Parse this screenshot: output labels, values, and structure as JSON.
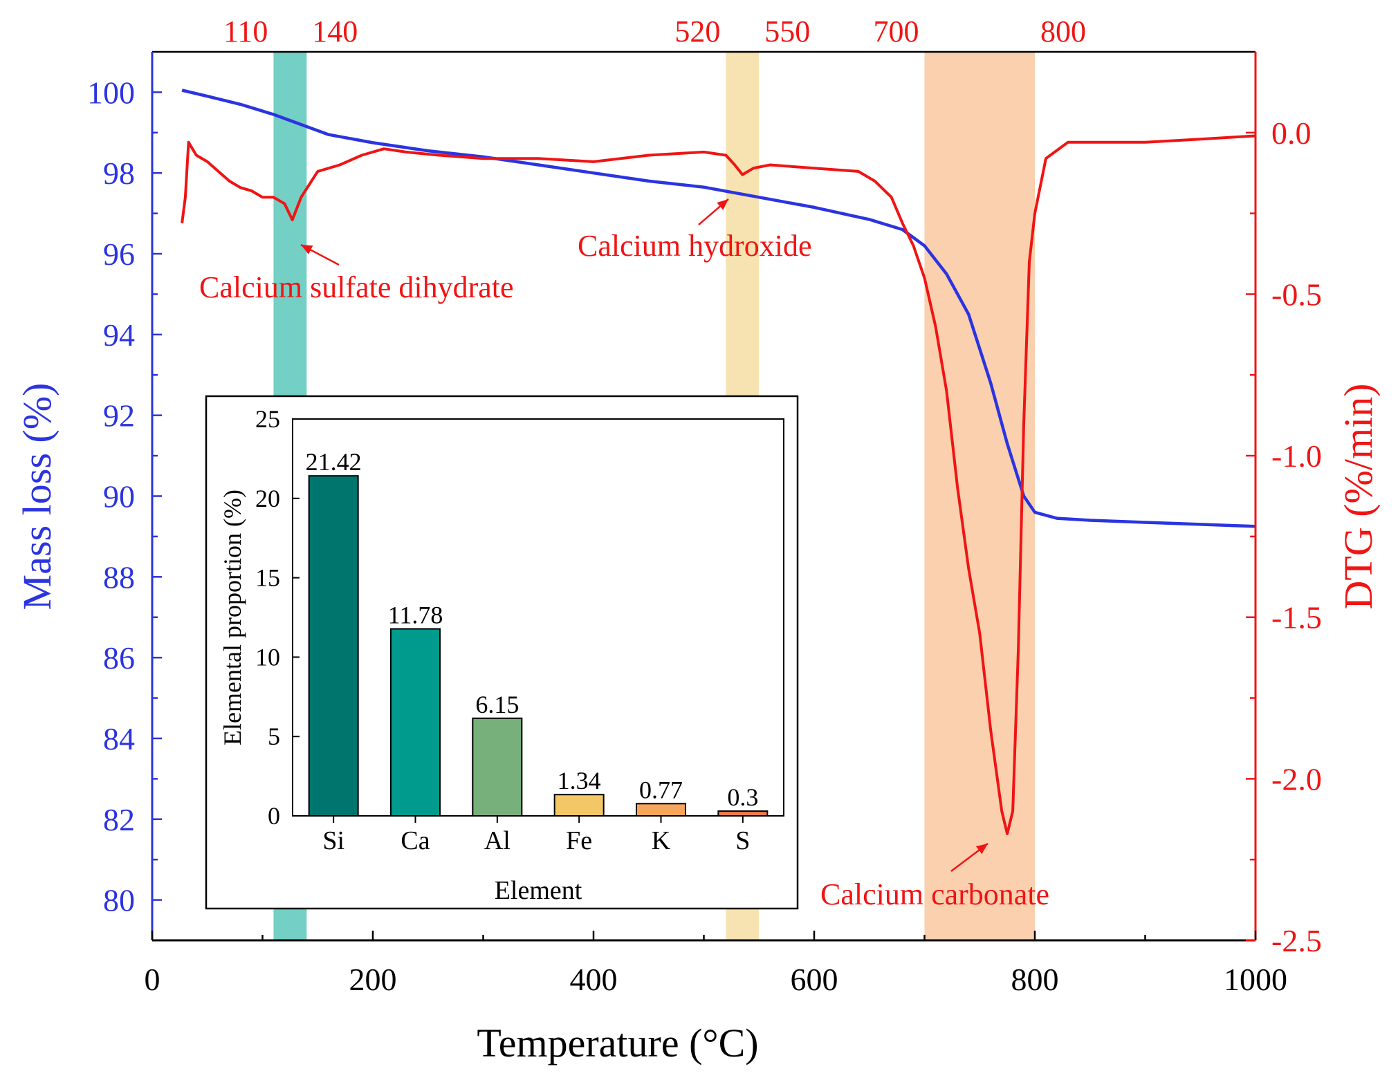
{
  "colors": {
    "mass": "#2b34e0",
    "dtg": "#f01414",
    "band1": "#74cfc4",
    "band2": "#f7e2b1",
    "band3": "#fbd0ae",
    "bar_si": "#00756e",
    "bar_ca": "#009b8d",
    "bar_al": "#77b07a",
    "bar_fe": "#f4c766",
    "bar_k": "#f5a65b",
    "bar_s": "#f07a4f"
  },
  "chart_data": [
    {
      "type": "line",
      "xlabel": "Temperature (°C)",
      "ylabel_left": "Mass loss (%)",
      "ylabel_right": "DTG (%/min)",
      "xlim": [
        0,
        1000
      ],
      "ylim_left": [
        79,
        101
      ],
      "ylim_right": [
        -2.5,
        0.25
      ],
      "x_ticks": [
        "0",
        "200",
        "400",
        "600",
        "800",
        "1000"
      ],
      "left_ticks": [
        "80",
        "82",
        "84",
        "86",
        "88",
        "90",
        "92",
        "94",
        "96",
        "98",
        "100"
      ],
      "right_ticks": [
        "0.0",
        "-0.5",
        "-1.0",
        "-1.5",
        "-2.0",
        "-2.5"
      ],
      "bands": [
        {
          "from": 110,
          "to": 140,
          "from_label": "110",
          "to_label": "140"
        },
        {
          "from": 520,
          "to": 550,
          "from_label": "520",
          "to_label": "550"
        },
        {
          "from": 700,
          "to": 800,
          "from_label": "700",
          "to_label": "800"
        }
      ],
      "annotations": [
        {
          "text": "Calcium sulfate dihydrate",
          "x": 127,
          "y_dtg": -0.27
        },
        {
          "text": "Calcium hydroxide",
          "x": 520,
          "y_dtg": -0.18
        },
        {
          "text": "Calcium carbonate",
          "x": 775,
          "y_dtg": -2.2
        }
      ],
      "series": [
        {
          "name": "Mass loss",
          "axis": "left",
          "x": [
            27,
            50,
            80,
            110,
            130,
            160,
            200,
            250,
            300,
            350,
            400,
            450,
            500,
            550,
            600,
            650,
            680,
            700,
            720,
            740,
            760,
            775,
            790,
            800,
            820,
            850,
            900,
            950,
            1000
          ],
          "y": [
            100.05,
            99.9,
            99.7,
            99.45,
            99.25,
            98.95,
            98.75,
            98.55,
            98.4,
            98.2,
            98.0,
            97.8,
            97.65,
            97.4,
            97.15,
            96.85,
            96.6,
            96.2,
            95.5,
            94.5,
            92.8,
            91.3,
            90.0,
            89.6,
            89.45,
            89.4,
            89.35,
            89.3,
            89.25
          ]
        },
        {
          "name": "DTG",
          "axis": "right",
          "x": [
            27,
            30,
            33,
            40,
            50,
            60,
            70,
            80,
            90,
            100,
            110,
            120,
            127,
            135,
            150,
            170,
            190,
            210,
            230,
            260,
            300,
            350,
            400,
            450,
            500,
            520,
            528,
            535,
            545,
            560,
            600,
            640,
            655,
            670,
            680,
            690,
            700,
            710,
            720,
            730,
            740,
            750,
            760,
            770,
            775,
            780,
            785,
            790,
            795,
            800,
            810,
            830,
            850,
            900,
            950,
            1000
          ],
          "y": [
            -0.28,
            -0.2,
            -0.03,
            -0.07,
            -0.09,
            -0.12,
            -0.15,
            -0.17,
            -0.18,
            -0.2,
            -0.2,
            -0.22,
            -0.27,
            -0.2,
            -0.12,
            -0.1,
            -0.07,
            -0.05,
            -0.06,
            -0.07,
            -0.08,
            -0.08,
            -0.09,
            -0.07,
            -0.06,
            -0.07,
            -0.1,
            -0.13,
            -0.11,
            -0.1,
            -0.11,
            -0.12,
            -0.15,
            -0.2,
            -0.28,
            -0.35,
            -0.45,
            -0.6,
            -0.8,
            -1.1,
            -1.35,
            -1.55,
            -1.85,
            -2.1,
            -2.17,
            -2.1,
            -1.6,
            -0.9,
            -0.4,
            -0.25,
            -0.08,
            -0.03,
            -0.03,
            -0.03,
            -0.02,
            -0.01
          ]
        }
      ]
    },
    {
      "type": "bar",
      "title": "",
      "categories": [
        "Si",
        "Ca",
        "Al",
        "Fe",
        "K",
        "S"
      ],
      "values": [
        21.42,
        11.78,
        6.15,
        1.34,
        0.77,
        0.3
      ],
      "value_labels": [
        "21.42",
        "11.78",
        "6.15",
        "1.34",
        "0.77",
        "0.3"
      ],
      "xlabel": "Element",
      "ylabel": "Elemental proportion (%)",
      "ylim": [
        0,
        25
      ],
      "y_ticks": [
        "0",
        "5",
        "10",
        "15",
        "20",
        "25"
      ]
    }
  ]
}
